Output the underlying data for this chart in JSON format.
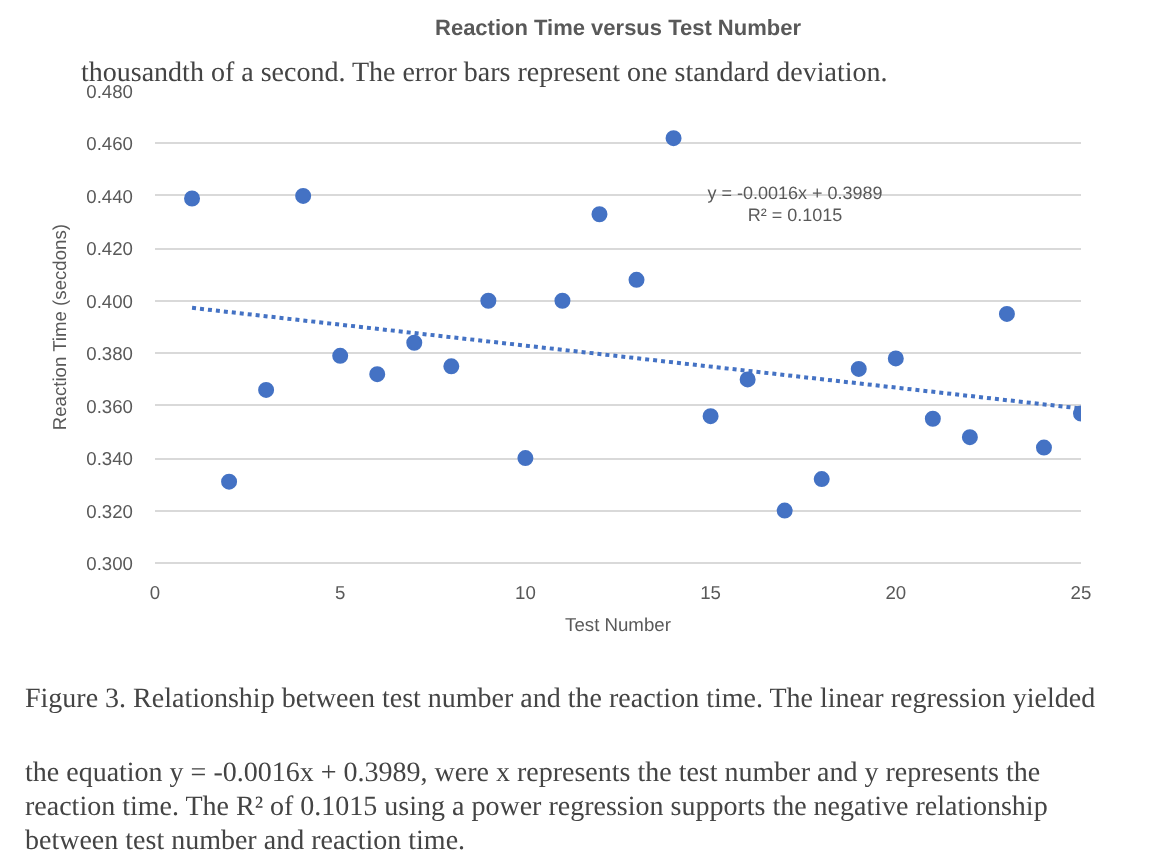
{
  "chart_data": {
    "type": "scatter",
    "title": "Reaction Time versus Test Number",
    "xlabel": "Test Number",
    "ylabel": "Reaction Time (secdons)",
    "xlim": [
      0,
      25
    ],
    "xticks": [
      0,
      5,
      10,
      15,
      20,
      25
    ],
    "ylim": [
      0.3,
      0.48
    ],
    "yticks": [
      {
        "value": 0.3,
        "label": "0.300"
      },
      {
        "value": 0.32,
        "label": "0.320"
      },
      {
        "value": 0.34,
        "label": "0.340"
      },
      {
        "value": 0.36,
        "label": "0.360"
      },
      {
        "value": 0.38,
        "label": "0.380"
      },
      {
        "value": 0.4,
        "label": "0.400"
      },
      {
        "value": 0.42,
        "label": "0.420"
      },
      {
        "value": 0.44,
        "label": "0.440"
      },
      {
        "value": 0.46,
        "label": "0.460"
      },
      {
        "value": 0.48,
        "label": "0.480"
      }
    ],
    "grid": "y",
    "series": [
      {
        "color": "#4472c4",
        "marker": "circle",
        "x": [
          1,
          2,
          3,
          4,
          5,
          6,
          7,
          8,
          9,
          10,
          11,
          12,
          13,
          14,
          15,
          16,
          17,
          18,
          19,
          20,
          21,
          22,
          23,
          24,
          25
        ],
        "values": [
          0.439,
          0.331,
          0.366,
          0.44,
          0.379,
          0.372,
          0.384,
          0.375,
          0.4,
          0.34,
          0.4,
          0.433,
          0.408,
          0.462,
          0.356,
          0.37,
          0.32,
          0.332,
          0.374,
          0.378,
          0.355,
          0.348,
          0.395,
          0.344,
          0.357
        ]
      },
      {
        "type": "line",
        "color": "#4472c4",
        "line_style": "dotted",
        "x": [
          1,
          25
        ],
        "values": [
          0.3973,
          0.3589
        ]
      }
    ],
    "annotations": [
      "y = -0.0016x + 0.3989",
      "R² = 0.1015",
      "thousandth of a second. The error bars represent one standard deviation.",
      "Figure 3. Relationship between test number and the reaction time. The linear regression yielded the equation y = -0.0016x + 0.3989, were x represents the test number and y represents the reaction time. The R² of 0.1015 using a power regression supports the negative relationship between test number and reaction time."
    ]
  }
}
